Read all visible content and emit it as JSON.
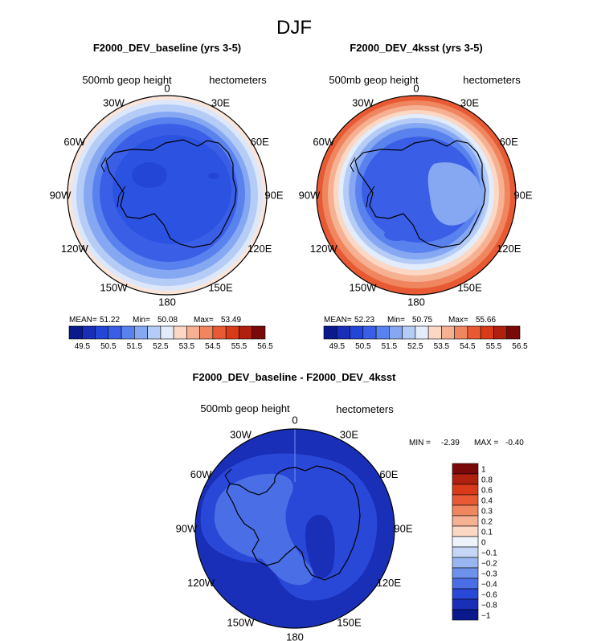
{
  "figure": {
    "season": "DJF"
  },
  "chart_data": [
    {
      "type": "heatmap",
      "projection": "south-polar-stereographic",
      "title": "F2000_DEV_baseline (yrs 3-5)",
      "field_label": "500mb geop height",
      "units_label": "hectometers",
      "longitude_labels": [
        "0",
        "30E",
        "60E",
        "90E",
        "120E",
        "150E",
        "180",
        "150W",
        "120W",
        "90W",
        "60W",
        "30W"
      ],
      "stats": {
        "mean_label": "MEAN=",
        "mean": "51.22",
        "min_label": "Min=",
        "min": "50.08",
        "max_label": "Max=",
        "max": "53.49"
      },
      "colorbar": {
        "colors": [
          "#0a1a8c",
          "#1a2fb8",
          "#2446d6",
          "#3a5fe6",
          "#5a82ee",
          "#86a8f2",
          "#b4ccf6",
          "#e2ecfa",
          "#fbd7c4",
          "#f6b092",
          "#f08660",
          "#e85a34",
          "#d83a1a",
          "#b0200e",
          "#7a0a0a"
        ],
        "tick_labels": [
          "49.5",
          "50.5",
          "51.5",
          "52.5",
          "53.5",
          "54.5",
          "55.5",
          "56.5"
        ]
      },
      "field_rings": [
        {
          "value": 53.49,
          "color": "#fbe4d8"
        },
        {
          "value": 52.8,
          "color": "#dce8fa"
        },
        {
          "value": 52.5,
          "color": "#b4ccf6"
        },
        {
          "value": 52.0,
          "color": "#86a8f2"
        },
        {
          "value": 51.5,
          "color": "#5a82ee"
        },
        {
          "value": 51.0,
          "color": "#3a5fe6"
        },
        {
          "value": 50.5,
          "color": "#2c52e2"
        }
      ],
      "interior_patches": [
        {
          "value": 50.08,
          "color": "#2446d6"
        }
      ]
    },
    {
      "type": "heatmap",
      "projection": "south-polar-stereographic",
      "title": "F2000_DEV_4ksst (yrs 3-5)",
      "field_label": "500mb geop height",
      "units_label": "hectometers",
      "longitude_labels": [
        "0",
        "30E",
        "60E",
        "90E",
        "120E",
        "150E",
        "180",
        "150W",
        "120W",
        "90W",
        "60W",
        "30W"
      ],
      "stats": {
        "mean_label": "MEAN=",
        "mean": "52.23",
        "min_label": "Min=",
        "min": "50.75",
        "max_label": "Max=",
        "max": "55.66"
      },
      "colorbar": {
        "colors": [
          "#0a1a8c",
          "#1a2fb8",
          "#2446d6",
          "#3a5fe6",
          "#5a82ee",
          "#86a8f2",
          "#b4ccf6",
          "#e2ecfa",
          "#fbd7c4",
          "#f6b092",
          "#f08660",
          "#e85a34",
          "#d83a1a",
          "#b0200e",
          "#7a0a0a"
        ],
        "tick_labels": [
          "49.5",
          "50.5",
          "51.5",
          "52.5",
          "53.5",
          "54.5",
          "55.5",
          "56.5"
        ]
      },
      "field_rings": [
        {
          "value": 55.66,
          "color": "#e85a34"
        },
        {
          "value": 55.3,
          "color": "#f08660"
        },
        {
          "value": 54.9,
          "color": "#f6b092"
        },
        {
          "value": 54.4,
          "color": "#fbd7c4"
        },
        {
          "value": 53.9,
          "color": "#e2ecfa"
        },
        {
          "value": 53.4,
          "color": "#b4ccf6"
        },
        {
          "value": 52.9,
          "color": "#86a8f2"
        },
        {
          "value": 52.4,
          "color": "#5a82ee"
        },
        {
          "value": 51.9,
          "color": "#3a5fe6"
        }
      ],
      "interior_patches": [
        {
          "value": 51.4,
          "color": "#86a8f2"
        },
        {
          "value": 50.75,
          "color": "#3a5fe6"
        }
      ]
    },
    {
      "type": "heatmap",
      "projection": "south-polar-stereographic",
      "title": "F2000_DEV_baseline - F2000_DEV_4ksst",
      "field_label": "500mb geop height",
      "units_label": "hectometers",
      "longitude_labels": [
        "0",
        "30E",
        "60E",
        "90E",
        "120E",
        "150E",
        "180",
        "150W",
        "120W",
        "90W",
        "60W",
        "30W"
      ],
      "stats": {
        "min_label": "MIN =",
        "min": "-2.39",
        "max_label": "MAX =",
        "max": "-0.40"
      },
      "colorbar": {
        "orientation": "vertical",
        "colors": [
          "#7a0a0a",
          "#b0200e",
          "#d83a1a",
          "#e85a34",
          "#f08660",
          "#f6b092",
          "#fbd7c4",
          "#eef3fb",
          "#c6d6f6",
          "#9ab6f2",
          "#6e92ec",
          "#4a6ee6",
          "#2a48d8",
          "#1a2fb8",
          "#0a1a8c"
        ],
        "tick_labels": [
          "1",
          "0.8",
          "0.6",
          "0.4",
          "0.3",
          "0.2",
          "0.1",
          "0",
          "−0.1",
          "−0.2",
          "−0.3",
          "−0.4",
          "−0.6",
          "−0.8",
          "−1"
        ]
      },
      "field_base": {
        "value": -1.0,
        "color": "#1a2fb8"
      },
      "interior_patches": [
        {
          "value": -0.8,
          "color": "#2a48d8"
        },
        {
          "value": -0.6,
          "color": "#4a6ee6"
        },
        {
          "value": -1.0,
          "color": "#1a2fb8"
        }
      ]
    }
  ]
}
